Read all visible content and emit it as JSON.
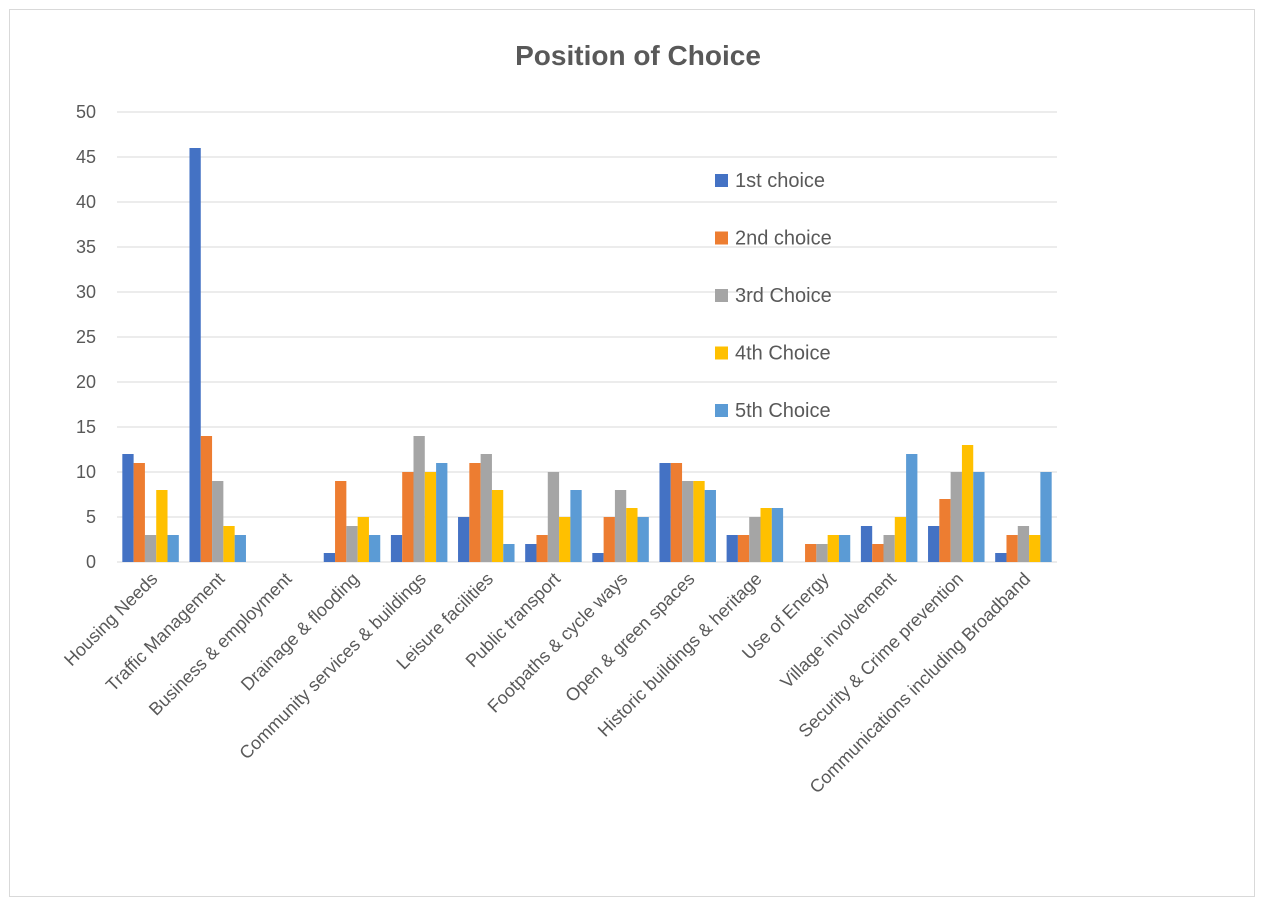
{
  "chart_data": {
    "type": "bar",
    "title": "Position of Choice",
    "xlabel": "",
    "ylabel": "",
    "ylim": [
      0,
      50
    ],
    "yticks": [
      0,
      5,
      10,
      15,
      20,
      25,
      30,
      35,
      40,
      45,
      50
    ],
    "grid": true,
    "legend_position": "upper-right inside plot",
    "categories": [
      "Housing Needs",
      "Traffic Management",
      "Business & employment",
      "Drainage & flooding",
      "Community services & buildings",
      "Leisure facilities",
      "Public transport",
      "Footpaths & cycle ways",
      "Open & green spaces",
      "Historic buildings & heritage",
      "Use of Energy",
      "Village involvement",
      "Security & Crime prevention",
      "Communications including Broadband"
    ],
    "series": [
      {
        "name": "1st choice",
        "color": "#4472C4",
        "values": [
          12,
          46,
          0,
          1,
          3,
          5,
          2,
          1,
          11,
          3,
          0,
          4,
          4,
          1
        ]
      },
      {
        "name": "2nd choice",
        "color": "#ED7D31",
        "values": [
          11,
          14,
          0,
          9,
          10,
          11,
          3,
          5,
          11,
          3,
          2,
          2,
          7,
          3
        ]
      },
      {
        "name": "3rd Choice",
        "color": "#A5A5A5",
        "values": [
          3,
          9,
          0,
          4,
          14,
          12,
          10,
          8,
          9,
          5,
          2,
          3,
          10,
          4
        ]
      },
      {
        "name": "4th Choice",
        "color": "#FFC000",
        "values": [
          8,
          4,
          0,
          5,
          10,
          8,
          5,
          6,
          9,
          6,
          3,
          5,
          13,
          3
        ]
      },
      {
        "name": "5th Choice",
        "color": "#5B9BD5",
        "values": [
          3,
          3,
          0,
          3,
          11,
          2,
          8,
          5,
          8,
          6,
          3,
          12,
          10,
          10
        ]
      }
    ]
  }
}
